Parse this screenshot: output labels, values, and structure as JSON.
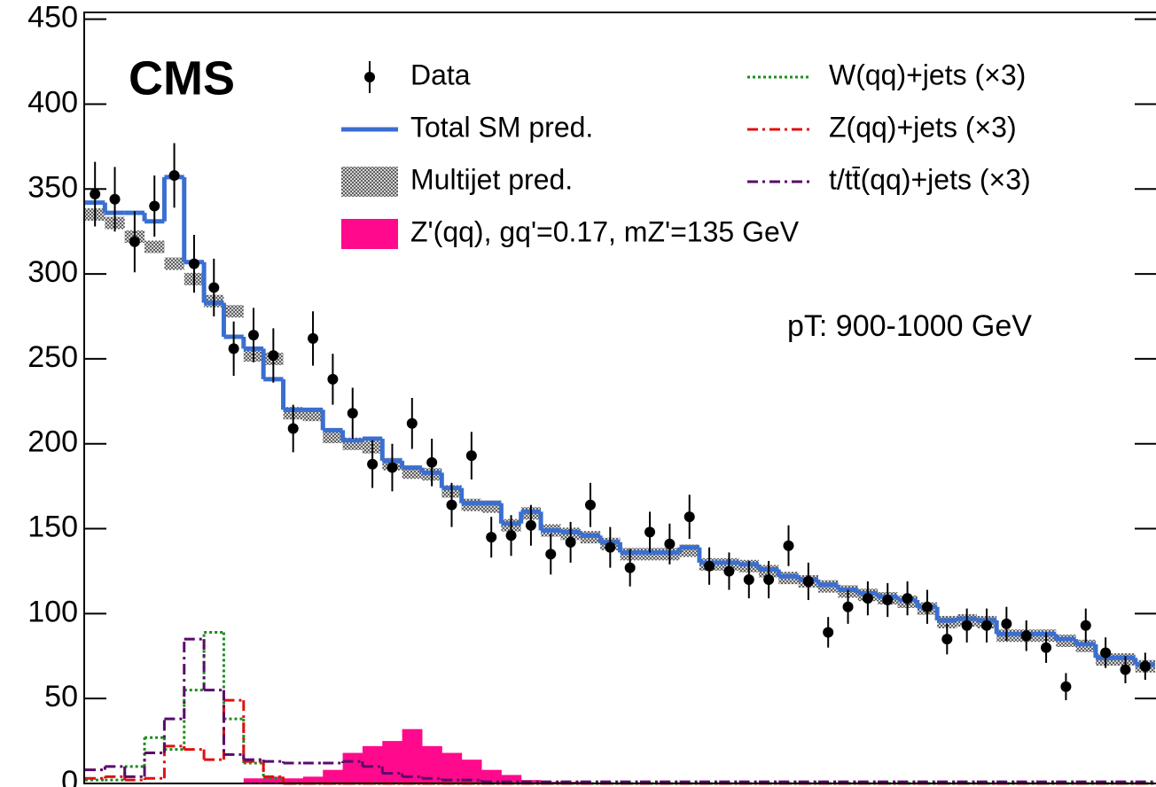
{
  "chart_data": {
    "type": "histogram-steps",
    "title": "CMS",
    "annotation": "pT: 900-1000 GeV",
    "ylim": [
      0,
      454
    ],
    "yticks": [
      0,
      50,
      100,
      150,
      200,
      250,
      300,
      350,
      400,
      450
    ],
    "series": [
      {
        "name": "Data",
        "kind": "points",
        "color": "#000000",
        "values": [
          347,
          344,
          319,
          340,
          358,
          306,
          292,
          256,
          264,
          252,
          209,
          262,
          238,
          218,
          188,
          186,
          212,
          189,
          164,
          193,
          145,
          146,
          152,
          135,
          142,
          164,
          139,
          127,
          148,
          141,
          157,
          128,
          125,
          120,
          120,
          140,
          119,
          89,
          104,
          109,
          108,
          109,
          104,
          85,
          93,
          93,
          94,
          87,
          80,
          57,
          93,
          77,
          67,
          69
        ],
        "errors": [
          19,
          19,
          18,
          18,
          19,
          17,
          17,
          16,
          16,
          16,
          14,
          16,
          15,
          15,
          14,
          14,
          15,
          14,
          13,
          14,
          12,
          12,
          12,
          12,
          12,
          13,
          12,
          11,
          12,
          12,
          13,
          11,
          11,
          11,
          11,
          12,
          11,
          9,
          10,
          10,
          10,
          10,
          10,
          9,
          10,
          10,
          10,
          9,
          9,
          8,
          10,
          9,
          8,
          8
        ]
      },
      {
        "name": "Total SM pred.",
        "kind": "step",
        "color": "#3a6fd1",
        "values": [
          342,
          336,
          336,
          331,
          357,
          307,
          283,
          263,
          256,
          238,
          220,
          220,
          208,
          202,
          203,
          190,
          186,
          183,
          174,
          165,
          165,
          153,
          160,
          149,
          148,
          146,
          142,
          136,
          136,
          136,
          139,
          130,
          130,
          129,
          126,
          122,
          120,
          117,
          114,
          112,
          110,
          108,
          104,
          96,
          97,
          96,
          88,
          88,
          88,
          85,
          82,
          74,
          74,
          70
        ]
      },
      {
        "name": "Multijet pred.",
        "kind": "band",
        "color": "#777777",
        "values": [
          335,
          330,
          322,
          316,
          306,
          297,
          284,
          278,
          252,
          250,
          218,
          217,
          204,
          200,
          198,
          188,
          183,
          182,
          172,
          164,
          163,
          152,
          159,
          149,
          147,
          145,
          141,
          135,
          135,
          135,
          137,
          129,
          129,
          128,
          125,
          121,
          119,
          116,
          113,
          111,
          109,
          107,
          103,
          95,
          96,
          95,
          87,
          87,
          87,
          84,
          81,
          73,
          73,
          69
        ]
      },
      {
        "name": "Z'(qq), gq'=0.17, mZ'=135 GeV",
        "kind": "fill",
        "color": "#ff0a8c",
        "values": [
          0,
          0,
          0,
          0,
          0,
          0,
          0,
          0,
          3,
          4,
          3,
          4,
          8,
          18,
          22,
          25,
          32,
          22,
          18,
          14,
          8,
          5,
          2,
          1,
          1,
          0,
          0,
          0,
          0,
          0,
          0,
          0,
          0,
          0,
          0,
          0,
          0,
          0,
          0,
          0,
          0,
          0,
          0,
          0,
          0,
          0,
          0,
          0,
          0,
          0,
          0,
          0,
          0,
          0
        ]
      },
      {
        "name": "W(qq)+jets (×3)",
        "kind": "step",
        "dash": "dotted",
        "color": "#1e8c1e",
        "values": [
          2,
          2,
          10,
          27,
          20,
          55,
          89,
          38,
          12,
          3,
          0,
          0,
          0,
          0,
          0,
          0,
          0,
          0,
          0,
          0,
          0,
          0,
          0,
          0,
          0,
          0,
          0,
          0,
          0,
          0,
          0,
          0,
          0,
          0,
          0,
          0,
          0,
          0,
          0,
          0,
          0,
          0,
          0,
          0,
          0,
          0,
          0,
          0,
          0,
          0,
          0,
          0,
          0,
          0
        ]
      },
      {
        "name": "Z(qq)+jets (×3)",
        "kind": "step",
        "dash": "dashdot",
        "color": "#e01010",
        "values": [
          3,
          4,
          2,
          3,
          22,
          20,
          14,
          49,
          13,
          4,
          0,
          0,
          0,
          0,
          0,
          0,
          0,
          0,
          0,
          0,
          0,
          0,
          0,
          0,
          0,
          0,
          0,
          0,
          0,
          0,
          0,
          0,
          0,
          0,
          0,
          0,
          0,
          0,
          0,
          0,
          0,
          0,
          0,
          0,
          0,
          0,
          0,
          0,
          0,
          0,
          0,
          0,
          0,
          0
        ]
      },
      {
        "name": "t/tt̄(qq)+jets (×3)",
        "kind": "step",
        "dash": "dashdot",
        "color": "#5a0a6a",
        "values": [
          8,
          10,
          4,
          18,
          38,
          85,
          55,
          17,
          14,
          13,
          12,
          12,
          12,
          13,
          10,
          6,
          4,
          3,
          2,
          2,
          1,
          1,
          1,
          1,
          1,
          1,
          1,
          1,
          1,
          1,
          1,
          1,
          1,
          1,
          1,
          1,
          1,
          1,
          1,
          1,
          1,
          1,
          1,
          1,
          1,
          1,
          1,
          1,
          1,
          1,
          1,
          1,
          1,
          1
        ]
      }
    ]
  }
}
